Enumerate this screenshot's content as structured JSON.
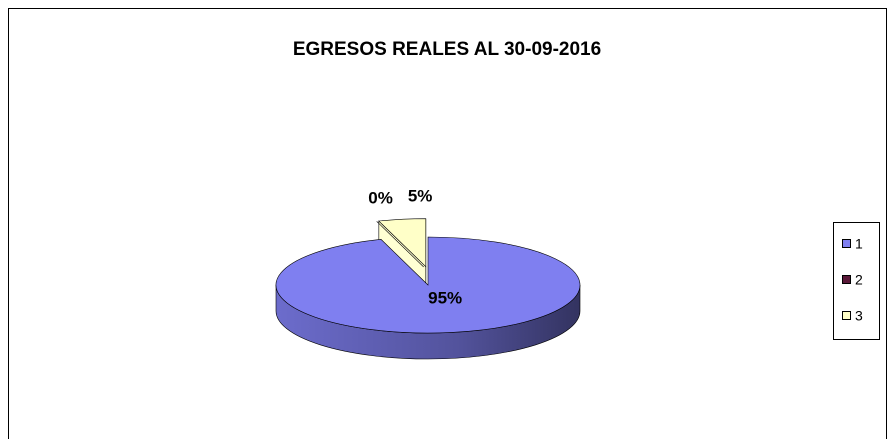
{
  "chart_data": {
    "type": "pie3d",
    "title": "EGRESOS REALES AL 30-09-2016",
    "categories": [
      "1",
      "2",
      "3"
    ],
    "values": [
      95,
      0,
      5
    ],
    "value_labels": [
      "95%",
      "0%",
      "5%"
    ],
    "colors": [
      "#7f7ff0",
      "#5a1838",
      "#ffffc8"
    ],
    "legend": "right"
  }
}
